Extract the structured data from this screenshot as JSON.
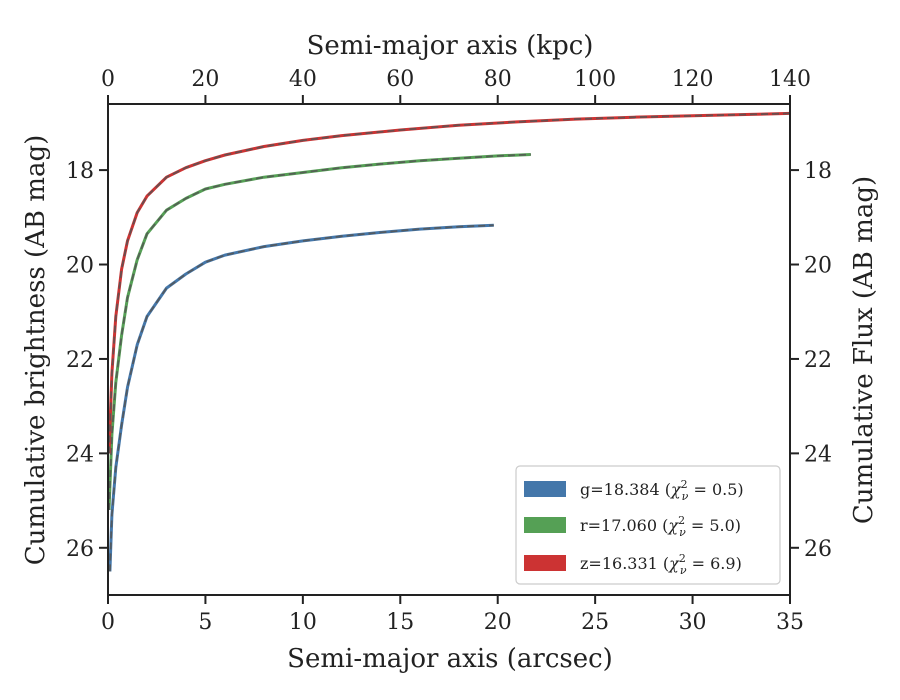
{
  "chart_data": {
    "type": "line",
    "title": "",
    "xlabel": "Semi-major axis (arcsec)",
    "x2label": "Semi-major axis (kpc)",
    "ylabel": "Cumulative brightness (AB mag)",
    "y2label": "Cumulative Flux (AB mag)",
    "xlim": [
      0,
      35
    ],
    "x2lim": [
      0,
      140
    ],
    "ylim": [
      27.0,
      16.6
    ],
    "y_inverted": true,
    "xticks": [
      0,
      5,
      10,
      15,
      20,
      25,
      30,
      35
    ],
    "x2ticks": [
      0,
      20,
      40,
      60,
      80,
      100,
      120,
      140
    ],
    "yticks": [
      18,
      20,
      22,
      24,
      26
    ],
    "grid": false,
    "legend_position": "bottom-right",
    "series": [
      {
        "name": "g",
        "legend": "g=18.384",
        "legend_math": "(χ²ᵥ = 0.5)",
        "chi_base": "χ",
        "chi_sup": "2",
        "chi_sub": "ν",
        "chi_val": "= 0.5)",
        "color": "#4477aa",
        "x": [
          0.1,
          0.2,
          0.4,
          0.7,
          1.0,
          1.5,
          2.0,
          3.0,
          4.0,
          5.0,
          6.0,
          8.0,
          10.0,
          12.0,
          14.0,
          16.0,
          18.0,
          19.8
        ],
        "y": [
          26.5,
          25.3,
          24.3,
          23.4,
          22.6,
          21.7,
          21.1,
          20.5,
          20.2,
          19.95,
          19.8,
          19.62,
          19.5,
          19.4,
          19.32,
          19.25,
          19.2,
          19.17
        ]
      },
      {
        "name": "r",
        "legend": "r=17.060",
        "legend_math": "(χ²ᵥ = 5.0)",
        "chi_base": "χ",
        "chi_sup": "2",
        "chi_sub": "ν",
        "chi_val": "= 5.0)",
        "color": "#55a055",
        "x": [
          0.05,
          0.2,
          0.4,
          0.7,
          1.0,
          1.5,
          2.0,
          3.0,
          4.0,
          5.0,
          6.0,
          8.0,
          10.0,
          12.0,
          14.0,
          16.0,
          18.0,
          20.0,
          21.7
        ],
        "y": [
          25.2,
          23.6,
          22.5,
          21.5,
          20.7,
          19.9,
          19.35,
          18.85,
          18.6,
          18.4,
          18.3,
          18.15,
          18.05,
          17.95,
          17.87,
          17.8,
          17.75,
          17.7,
          17.67
        ]
      },
      {
        "name": "z",
        "legend": "z=16.331",
        "legend_math": "(χ²ᵥ = 6.9)",
        "chi_base": "χ",
        "chi_sup": "2",
        "chi_sub": "ν",
        "chi_val": "= 6.9)",
        "color": "#cc3333",
        "x": [
          0.05,
          0.2,
          0.4,
          0.7,
          1.0,
          1.5,
          2.0,
          3.0,
          4.0,
          5.0,
          6.0,
          8.0,
          10.0,
          12.0,
          15.0,
          18.0,
          21.0,
          24.0,
          27.0,
          30.0,
          33.0,
          35.0
        ],
        "y": [
          24.0,
          22.3,
          21.1,
          20.1,
          19.5,
          18.9,
          18.55,
          18.15,
          17.95,
          17.8,
          17.68,
          17.5,
          17.37,
          17.27,
          17.15,
          17.05,
          16.98,
          16.92,
          16.88,
          16.85,
          16.82,
          16.8
        ]
      }
    ]
  }
}
